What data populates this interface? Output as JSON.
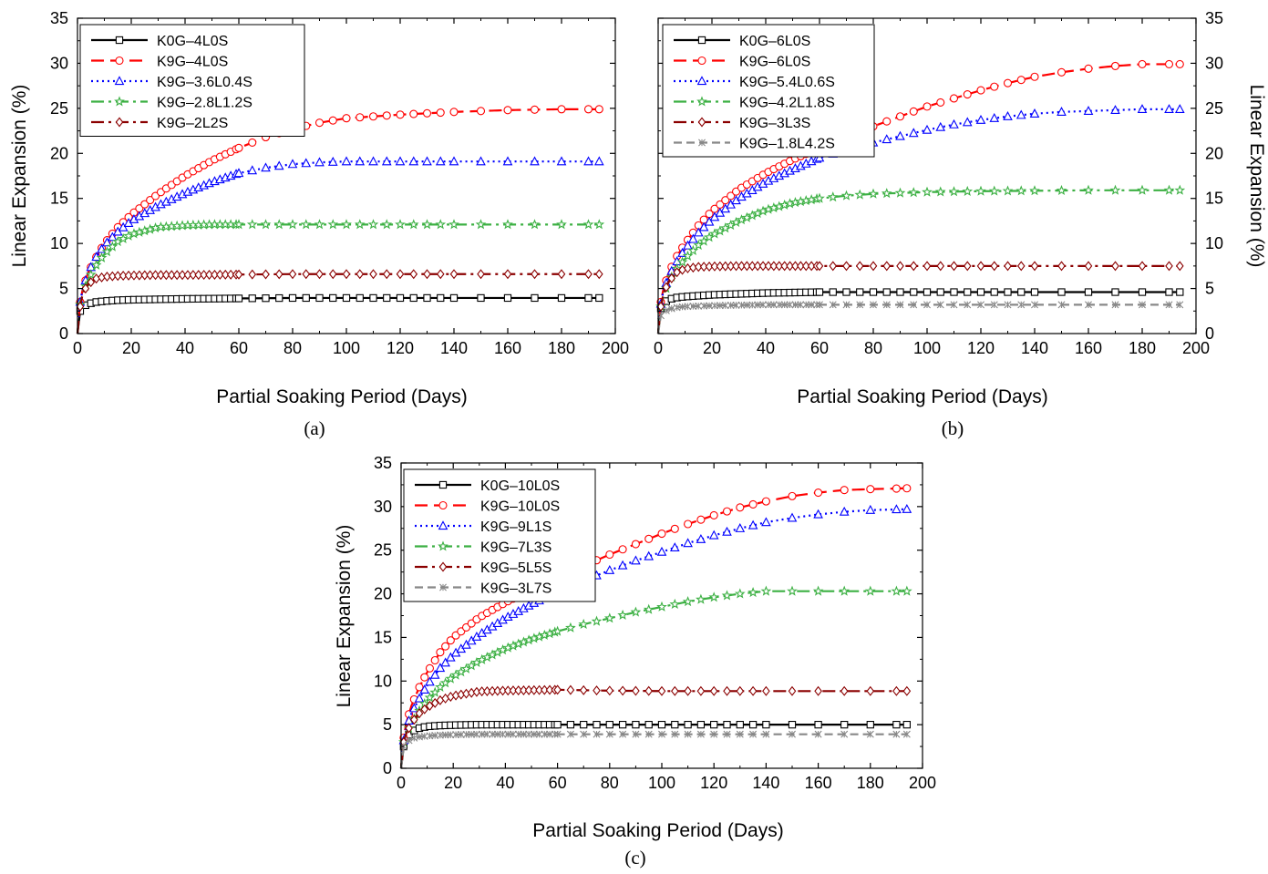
{
  "chart_data": [
    {
      "type": "line",
      "panel_label": "(a)",
      "xlabel": "Partial Soaking Period (Days)",
      "ylabel": "Linear Expansion (%)",
      "xlim": [
        0,
        200
      ],
      "ylim": [
        0,
        35
      ],
      "xticks": [
        0,
        20,
        40,
        60,
        80,
        100,
        120,
        140,
        160,
        180,
        200
      ],
      "yticks": [
        0,
        5,
        10,
        15,
        20,
        25,
        30,
        35
      ],
      "legend_position": "top-left",
      "grid": false,
      "series": [
        {
          "name": "K0G–4L0S",
          "color": "#000000",
          "dash": "solid",
          "marker": "square",
          "x": [
            0,
            1,
            2,
            4,
            7,
            10,
            15,
            20,
            30,
            40,
            60,
            80,
            100,
            120,
            140,
            160,
            180,
            194
          ],
          "y": [
            0,
            2.5,
            3.0,
            3.3,
            3.5,
            3.6,
            3.7,
            3.75,
            3.8,
            3.85,
            3.9,
            3.95,
            3.95,
            3.95,
            3.95,
            3.95,
            3.95,
            3.95
          ]
        },
        {
          "name": "K9G–4L0S",
          "color": "#ff0000",
          "dash": "longdash",
          "marker": "circle",
          "x": [
            0,
            1,
            2,
            4,
            7,
            10,
            15,
            20,
            30,
            40,
            50,
            60,
            70,
            80,
            90,
            100,
            120,
            140,
            160,
            180,
            194
          ],
          "y": [
            0,
            3.5,
            5.0,
            6.8,
            8.5,
            10.0,
            11.8,
            13.2,
            15.5,
            17.5,
            19.2,
            20.6,
            21.8,
            22.7,
            23.4,
            23.9,
            24.3,
            24.6,
            24.8,
            24.9,
            24.9
          ]
        },
        {
          "name": "K9G–3.6L0.4S",
          "color": "#0000ff",
          "dash": "dotted",
          "marker": "triangle",
          "x": [
            0,
            1,
            2,
            4,
            7,
            10,
            15,
            20,
            30,
            40,
            50,
            60,
            70,
            80,
            90,
            100,
            120,
            140,
            160,
            180,
            194
          ],
          "y": [
            0,
            3.5,
            5.0,
            6.8,
            8.5,
            9.8,
            11.3,
            12.5,
            14.2,
            15.6,
            16.8,
            17.8,
            18.4,
            18.8,
            19.0,
            19.1,
            19.1,
            19.1,
            19.1,
            19.1,
            19.1
          ]
        },
        {
          "name": "K9G–2.8L1.2S",
          "color": "#3cb043",
          "dash": "dashdot",
          "marker": "star",
          "x": [
            0,
            1,
            2,
            4,
            7,
            10,
            15,
            20,
            30,
            40,
            50,
            60,
            80,
            100,
            120,
            140,
            160,
            180,
            194
          ],
          "y": [
            0,
            3.2,
            4.5,
            6.0,
            7.6,
            8.8,
            10.2,
            11.0,
            11.8,
            12.0,
            12.1,
            12.1,
            12.1,
            12.1,
            12.1,
            12.1,
            12.1,
            12.1,
            12.1
          ]
        },
        {
          "name": "K9G–2L2S",
          "color": "#8b0000",
          "dash": "dashdot",
          "marker": "diamond",
          "x": [
            0,
            1,
            2,
            4,
            7,
            10,
            15,
            20,
            30,
            40,
            60,
            80,
            100,
            120,
            140,
            160,
            180,
            194
          ],
          "y": [
            0,
            3.0,
            4.5,
            5.5,
            6.1,
            6.3,
            6.4,
            6.45,
            6.5,
            6.5,
            6.55,
            6.6,
            6.6,
            6.6,
            6.6,
            6.6,
            6.6,
            6.6
          ]
        }
      ]
    },
    {
      "type": "line",
      "panel_label": "(b)",
      "xlabel": "Partial Soaking Period (Days)",
      "ylabel": "Linear Expansion (%)",
      "xlim": [
        0,
        200
      ],
      "ylim": [
        0,
        35
      ],
      "xticks": [
        0,
        20,
        40,
        60,
        80,
        100,
        120,
        140,
        160,
        180,
        200
      ],
      "yticks": [
        0,
        5,
        10,
        15,
        20,
        25,
        30,
        35
      ],
      "legend_position": "top-left",
      "grid": false,
      "series": [
        {
          "name": "K0G–6L0S",
          "color": "#000000",
          "dash": "solid",
          "marker": "square",
          "x": [
            0,
            1,
            2,
            4,
            7,
            10,
            15,
            20,
            30,
            40,
            60,
            80,
            100,
            120,
            140,
            160,
            180,
            194
          ],
          "y": [
            0,
            2.8,
            3.4,
            3.8,
            4.0,
            4.1,
            4.2,
            4.3,
            4.4,
            4.5,
            4.6,
            4.6,
            4.6,
            4.6,
            4.6,
            4.6,
            4.6,
            4.6
          ]
        },
        {
          "name": "K9G–6L0S",
          "color": "#ff0000",
          "dash": "longdash",
          "marker": "circle",
          "x": [
            0,
            1,
            2,
            4,
            7,
            10,
            15,
            20,
            30,
            40,
            50,
            60,
            70,
            80,
            90,
            100,
            110,
            120,
            130,
            140,
            150,
            160,
            170,
            180,
            194
          ],
          "y": [
            0,
            3.5,
            5.0,
            6.8,
            8.6,
            10.0,
            12.0,
            13.6,
            16.0,
            17.8,
            19.3,
            20.6,
            21.8,
            23.0,
            24.1,
            25.2,
            26.1,
            27.0,
            27.8,
            28.5,
            29.0,
            29.4,
            29.7,
            29.9,
            29.9
          ]
        },
        {
          "name": "K9G–5.4L0.6S",
          "color": "#0000ff",
          "dash": "dotted",
          "marker": "triangle",
          "x": [
            0,
            1,
            2,
            4,
            7,
            10,
            15,
            20,
            30,
            40,
            50,
            60,
            70,
            80,
            90,
            100,
            110,
            120,
            130,
            140,
            150,
            160,
            170,
            180,
            194
          ],
          "y": [
            0,
            3.3,
            4.8,
            6.4,
            8.0,
            9.4,
            11.2,
            12.7,
            15.0,
            16.8,
            18.2,
            19.5,
            20.4,
            21.2,
            21.9,
            22.6,
            23.2,
            23.7,
            24.1,
            24.4,
            24.6,
            24.7,
            24.8,
            24.9,
            24.9
          ]
        },
        {
          "name": "K9G–4.2L1.8S",
          "color": "#3cb043",
          "dash": "dashdot",
          "marker": "star",
          "x": [
            0,
            1,
            2,
            4,
            7,
            10,
            15,
            20,
            30,
            40,
            50,
            60,
            70,
            80,
            100,
            120,
            140,
            160,
            180,
            194
          ],
          "y": [
            0,
            3.0,
            4.2,
            5.8,
            7.2,
            8.3,
            9.8,
            10.9,
            12.5,
            13.7,
            14.5,
            15.0,
            15.3,
            15.5,
            15.7,
            15.8,
            15.85,
            15.9,
            15.9,
            15.9
          ]
        },
        {
          "name": "K9G–3L3S",
          "color": "#8b0000",
          "dash": "dashdot",
          "marker": "diamond",
          "x": [
            0,
            1,
            2,
            4,
            7,
            10,
            15,
            20,
            30,
            40,
            60,
            80,
            100,
            120,
            140,
            160,
            180,
            194
          ],
          "y": [
            0,
            3.0,
            4.5,
            5.8,
            6.8,
            7.2,
            7.4,
            7.45,
            7.5,
            7.5,
            7.5,
            7.5,
            7.5,
            7.5,
            7.5,
            7.5,
            7.5,
            7.5
          ]
        },
        {
          "name": "K9G–1.8L4.2S",
          "color": "#888888",
          "dash": "dashed",
          "marker": "cross",
          "x": [
            0,
            1,
            2,
            4,
            7,
            10,
            15,
            20,
            30,
            40,
            60,
            80,
            100,
            120,
            140,
            160,
            180,
            194
          ],
          "y": [
            0,
            2.0,
            2.4,
            2.7,
            2.9,
            3.0,
            3.05,
            3.1,
            3.15,
            3.2,
            3.2,
            3.2,
            3.2,
            3.2,
            3.2,
            3.2,
            3.2,
            3.2
          ]
        }
      ]
    },
    {
      "type": "line",
      "panel_label": "(c)",
      "xlabel": "Partial Soaking Period (Days)",
      "ylabel": "Linear Expansion (%)",
      "xlim": [
        0,
        200
      ],
      "ylim": [
        0,
        35
      ],
      "xticks": [
        0,
        20,
        40,
        60,
        80,
        100,
        120,
        140,
        160,
        180,
        200
      ],
      "yticks": [
        0,
        5,
        10,
        15,
        20,
        25,
        30,
        35
      ],
      "legend_position": "top-left",
      "grid": false,
      "series": [
        {
          "name": "K0G–10L0S",
          "color": "#000000",
          "dash": "solid",
          "marker": "square",
          "x": [
            0,
            1,
            2,
            4,
            7,
            10,
            15,
            20,
            30,
            40,
            60,
            80,
            100,
            120,
            140,
            160,
            180,
            194
          ],
          "y": [
            0,
            2.5,
            3.5,
            4.2,
            4.6,
            4.8,
            4.9,
            4.95,
            5.0,
            5.0,
            5.0,
            5.0,
            5.0,
            5.0,
            5.0,
            5.0,
            5.0,
            5.0
          ]
        },
        {
          "name": "K9G–10L0S",
          "color": "#ff0000",
          "dash": "longdash",
          "marker": "circle",
          "x": [
            0,
            1,
            2,
            4,
            7,
            10,
            15,
            20,
            30,
            40,
            50,
            60,
            70,
            80,
            90,
            100,
            110,
            120,
            130,
            140,
            150,
            160,
            170,
            180,
            194
          ],
          "y": [
            0,
            3.5,
            5.2,
            7.2,
            9.3,
            11.0,
            13.3,
            15.0,
            17.3,
            19.0,
            20.5,
            21.9,
            23.2,
            24.5,
            25.7,
            26.9,
            28.0,
            29.0,
            29.9,
            30.6,
            31.2,
            31.6,
            31.9,
            32.0,
            32.1
          ]
        },
        {
          "name": "K9G–9L1S",
          "color": "#0000ff",
          "dash": "dotted",
          "marker": "triangle",
          "x": [
            0,
            1,
            2,
            4,
            7,
            10,
            15,
            20,
            30,
            40,
            50,
            60,
            70,
            80,
            90,
            100,
            110,
            120,
            130,
            140,
            150,
            160,
            170,
            180,
            194
          ],
          "y": [
            0,
            3.2,
            4.6,
            6.3,
            8.0,
            9.5,
            11.5,
            13.0,
            15.3,
            17.2,
            18.8,
            20.2,
            21.5,
            22.7,
            23.8,
            24.8,
            25.8,
            26.7,
            27.5,
            28.2,
            28.7,
            29.1,
            29.4,
            29.6,
            29.7
          ]
        },
        {
          "name": "K9G–7L3S",
          "color": "#3cb043",
          "dash": "dashdot",
          "marker": "star",
          "x": [
            0,
            1,
            2,
            4,
            7,
            10,
            15,
            20,
            30,
            40,
            50,
            60,
            70,
            80,
            90,
            100,
            110,
            120,
            130,
            140,
            150,
            160,
            180,
            194
          ],
          "y": [
            0,
            3.0,
            4.0,
            5.2,
            6.6,
            7.8,
            9.3,
            10.5,
            12.3,
            13.7,
            14.8,
            15.7,
            16.5,
            17.2,
            17.9,
            18.5,
            19.1,
            19.6,
            20.0,
            20.3,
            20.3,
            20.3,
            20.3,
            20.3
          ]
        },
        {
          "name": "K9G–5L5S",
          "color": "#8b0000",
          "dash": "dashdot",
          "marker": "diamond",
          "x": [
            0,
            1,
            2,
            4,
            7,
            10,
            15,
            20,
            30,
            40,
            60,
            80,
            100,
            120,
            140,
            160,
            180,
            194
          ],
          "y": [
            0,
            3.0,
            4.0,
            5.2,
            6.3,
            7.0,
            7.8,
            8.3,
            8.8,
            8.9,
            9.0,
            8.9,
            8.85,
            8.85,
            8.85,
            8.85,
            8.85,
            8.85
          ]
        },
        {
          "name": "K9G–3L7S",
          "color": "#888888",
          "dash": "dashed",
          "marker": "cross",
          "x": [
            0,
            1,
            2,
            4,
            7,
            10,
            15,
            20,
            30,
            40,
            60,
            80,
            100,
            120,
            140,
            160,
            180,
            194
          ],
          "y": [
            0,
            2.5,
            3.0,
            3.4,
            3.6,
            3.7,
            3.8,
            3.85,
            3.9,
            3.9,
            3.9,
            3.9,
            3.9,
            3.9,
            3.9,
            3.9,
            3.9,
            3.9
          ]
        }
      ]
    }
  ]
}
